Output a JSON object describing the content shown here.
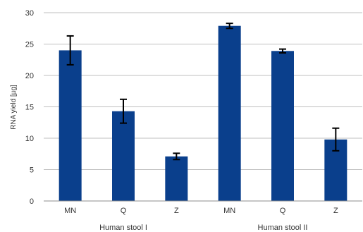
{
  "chart_data": {
    "type": "bar",
    "title": "",
    "xlabel": "",
    "ylabel": "RNA yield [µg]",
    "ylim": [
      0,
      30
    ],
    "yticks": [
      0,
      5,
      10,
      15,
      20,
      25,
      30
    ],
    "grid": true,
    "groups": [
      {
        "label": "Human stool I",
        "categories": [
          "MN",
          "Q",
          "Z"
        ]
      },
      {
        "label": "Human stool II",
        "categories": [
          "MN",
          "Q",
          "Z"
        ]
      }
    ],
    "categories": [
      "MN",
      "Q",
      "Z",
      "MN",
      "Q",
      "Z"
    ],
    "values": [
      24.0,
      14.3,
      7.1,
      27.9,
      23.9,
      9.8
    ],
    "errors": [
      2.3,
      1.9,
      0.5,
      0.4,
      0.3,
      1.8
    ],
    "colors": {
      "bar": "#0a3f8c",
      "grid": "#bfbfbf",
      "axis": "#8c8c8c",
      "errorbar": "#000000"
    }
  }
}
